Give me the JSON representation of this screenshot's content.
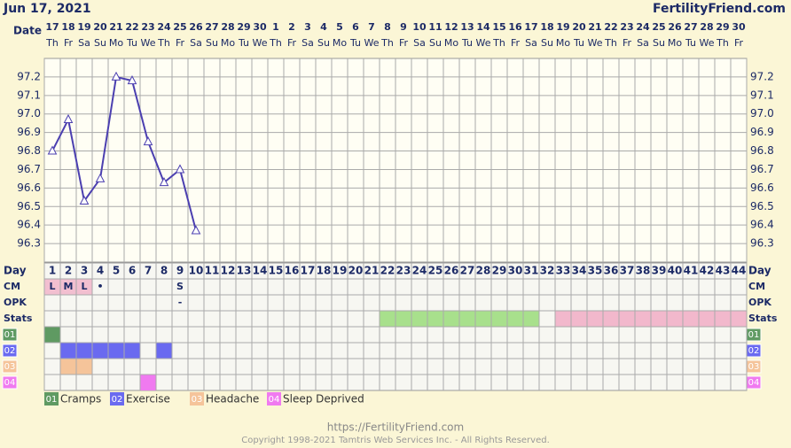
{
  "header": {
    "date": "Jun 17, 2021",
    "site": "FertilityFriend.com"
  },
  "chart_data": {
    "type": "line",
    "x_label": "Date",
    "categories": [
      "17",
      "18",
      "19",
      "20",
      "21",
      "22",
      "23",
      "24",
      "25",
      "26",
      "27",
      "28",
      "29",
      "30",
      "1",
      "2",
      "3",
      "4",
      "5",
      "6",
      "7",
      "8",
      "9",
      "10",
      "11",
      "12",
      "13",
      "14",
      "15",
      "16",
      "17",
      "18",
      "19",
      "20",
      "21",
      "22",
      "23",
      "24",
      "25",
      "26",
      "27",
      "28",
      "29",
      "30"
    ],
    "weekdays": [
      "Th",
      "Fr",
      "Sa",
      "Su",
      "Mo",
      "Tu",
      "We",
      "Th",
      "Fr",
      "Sa",
      "Su",
      "Mo",
      "Tu",
      "We",
      "Th",
      "Fr",
      "Sa",
      "Su",
      "Mo",
      "Tu",
      "We",
      "Th",
      "Fr",
      "Sa",
      "Su",
      "Mo",
      "Tu",
      "We",
      "Th",
      "Fr",
      "Sa",
      "Su",
      "Mo",
      "Tu",
      "We",
      "Th",
      "Fr",
      "Sa",
      "Su",
      "Mo",
      "Tu",
      "We",
      "Th",
      "Fr"
    ],
    "series": [
      {
        "color": "#4b3fb0",
        "values": [
          96.8,
          96.97,
          96.53,
          96.65,
          97.2,
          97.18,
          96.85,
          96.63,
          96.7,
          96.37,
          null,
          null,
          null,
          null,
          null,
          null,
          null,
          null,
          null,
          null,
          null,
          null,
          null,
          null,
          null,
          null,
          null,
          null,
          null,
          null,
          null,
          null,
          null,
          null,
          null,
          null,
          null,
          null,
          null,
          null,
          null,
          null,
          null,
          null
        ]
      }
    ],
    "ylim": [
      96.2,
      97.3
    ],
    "yticks": [
      96.3,
      96.4,
      96.5,
      96.6,
      96.7,
      96.8,
      96.9,
      {
        "value": 97.0,
        "label": "97.0"
      },
      97.1,
      97.2
    ],
    "grid": true
  },
  "table": {
    "labels": {
      "day": "Day",
      "cm": "CM",
      "opk": "OPK",
      "stats": "Stats"
    },
    "days": [
      1,
      2,
      3,
      4,
      5,
      6,
      7,
      8,
      9,
      10,
      11,
      12,
      13,
      14,
      15,
      16,
      17,
      18,
      19,
      20,
      21,
      22,
      23,
      24,
      25,
      26,
      27,
      28,
      29,
      30,
      31,
      32,
      33,
      34,
      35,
      36,
      37,
      38,
      39,
      40,
      41,
      42,
      43,
      44
    ],
    "cm": [
      {
        "day": 1,
        "text": "L",
        "color": "#f2bfd0"
      },
      {
        "day": 2,
        "text": "M",
        "color": "#f2bfd0"
      },
      {
        "day": 3,
        "text": "L",
        "color": "#f2bfd0"
      },
      {
        "day": 4,
        "text": "•"
      },
      {
        "day": 9,
        "text": "S"
      }
    ],
    "opk": [
      {
        "day": 9,
        "text": "-"
      }
    ],
    "stats": [
      {
        "start": 22,
        "end": 31,
        "color": "#a8e08c"
      },
      {
        "start": 33,
        "end": 44,
        "color": "#f2b8cc"
      }
    ],
    "symptoms": [
      {
        "code": "01",
        "label": "Cramps",
        "color": "#5f9a62",
        "days": [
          1
        ]
      },
      {
        "code": "02",
        "label": "Exercise",
        "color": "#6a6af0",
        "days": [
          2,
          3,
          4,
          5,
          6,
          8
        ]
      },
      {
        "code": "03",
        "label": "Headache",
        "color": "#f5c49a",
        "days": [
          2,
          3
        ]
      },
      {
        "code": "04",
        "label": "Sleep Deprived",
        "color": "#f07af0",
        "days": [
          7
        ]
      }
    ]
  },
  "footer": {
    "url": "https://FertilityFriend.com",
    "copyright": "Copyright 1998-2021 Tamtris Web Services Inc. - All Rights Reserved."
  }
}
